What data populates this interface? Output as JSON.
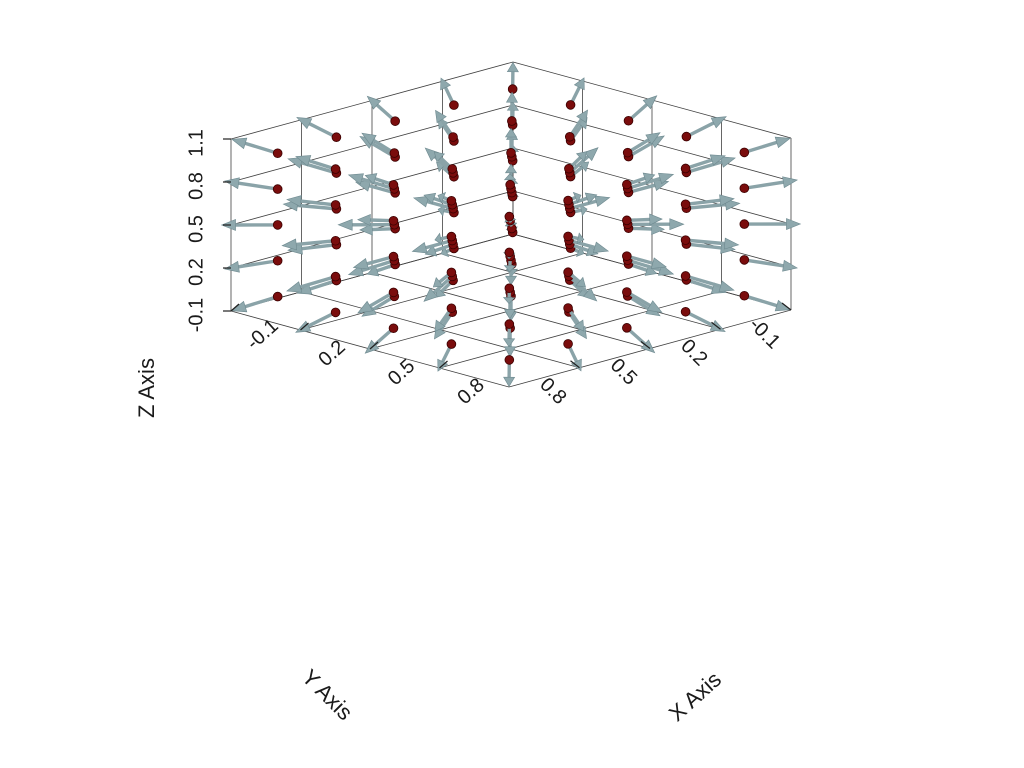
{
  "chart_data": {
    "type": "quiver3d",
    "xlabel": "X Axis",
    "ylabel": "Y Axis",
    "zlabel": "Z Axis",
    "x_ticks": [
      "-0.1",
      "0.2",
      "0.5",
      "0.8"
    ],
    "y_ticks": [
      "-0.1",
      "0.2",
      "0.5",
      "0.8"
    ],
    "z_ticks": [
      "-0.1",
      "0.2",
      "0.5",
      "0.8",
      "1.1"
    ],
    "xlim": [
      -0.1,
      1.1
    ],
    "ylim": [
      -0.1,
      1.1
    ],
    "zlim": [
      -0.1,
      1.1
    ],
    "field": "radial vectors pointing outward from the center (0.5, 0.5, 0.5)",
    "grid": true,
    "colors": {
      "points": "#7a0c0c",
      "arrows": "#8ea8ad"
    }
  }
}
